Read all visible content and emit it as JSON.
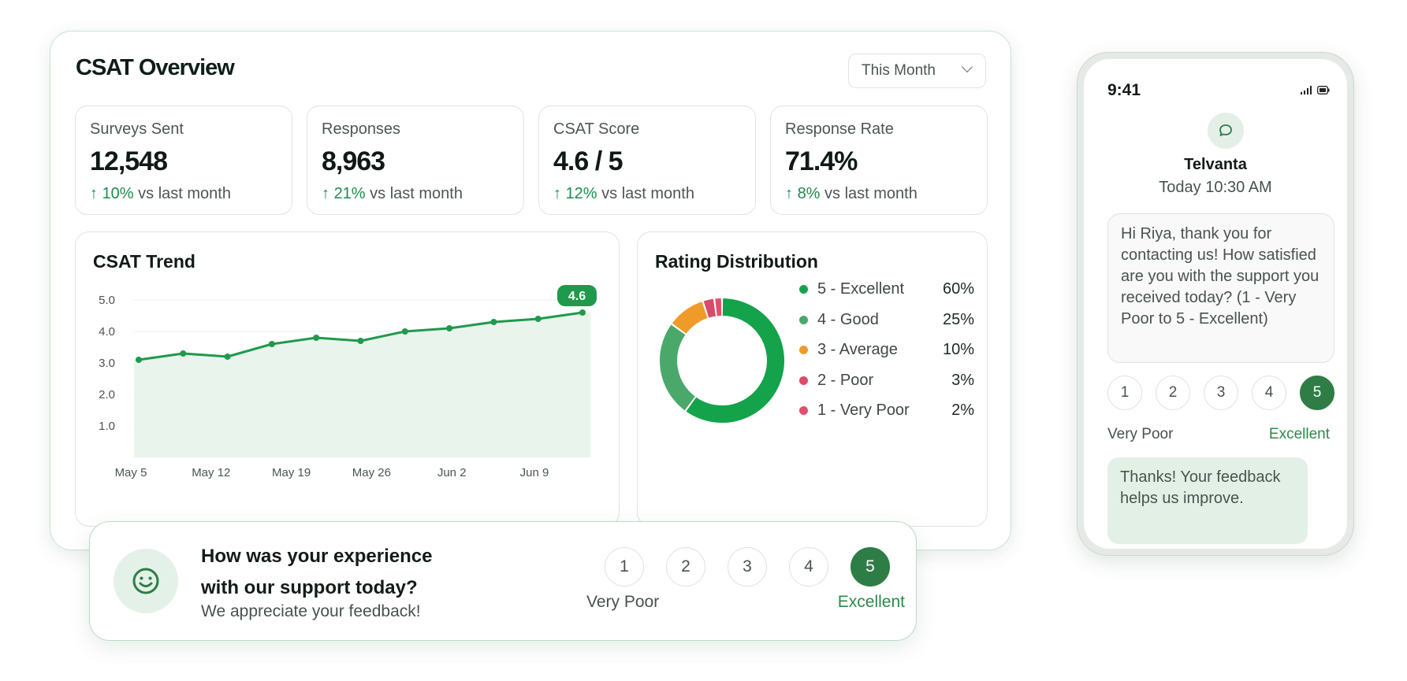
{
  "dashboard": {
    "title": "CSAT Overview",
    "period": "This Month",
    "kpis": [
      {
        "label": "Surveys Sent",
        "value": "12,548",
        "delta": "10%",
        "suffix": "vs last month"
      },
      {
        "label": "Responses",
        "value": "8,963",
        "delta": "21%",
        "suffix": "vs last month"
      },
      {
        "label": "CSAT Score",
        "value": "4.6 / 5",
        "delta": "12%",
        "suffix": "vs last month"
      },
      {
        "label": "Response Rate",
        "value": "71.4%",
        "delta": "8%",
        "suffix": "vs last month"
      }
    ],
    "trend": {
      "title": "CSAT Trend",
      "badge": "4.6"
    },
    "distribution": {
      "title": "Rating Distribution"
    }
  },
  "chart_data": [
    {
      "type": "area",
      "title": "CSAT Trend",
      "x_tick_labels": [
        "May 5",
        "May 12",
        "May 19",
        "May 26",
        "Jun 2",
        "Jun 9"
      ],
      "y_tick_labels": [
        "5.0",
        "4.0",
        "3.0",
        "2.0",
        "1.0"
      ],
      "ylim": [
        0,
        5
      ],
      "grid": true,
      "series": [
        {
          "values": [
            3.1,
            3.3,
            3.2,
            3.6,
            3.8,
            3.7,
            4.0,
            4.1,
            4.3,
            4.4,
            4.6
          ],
          "color": "#1f9a4c"
        }
      ]
    },
    {
      "type": "pie",
      "donut": true,
      "title": "Rating Distribution",
      "slices": [
        {
          "label": "5 - Excellent",
          "value": 60,
          "pct": "60%",
          "color": "#14a24a"
        },
        {
          "label": "4 - Good",
          "value": 25,
          "pct": "25%",
          "color": "#4aa86b"
        },
        {
          "label": "3 - Average",
          "value": 10,
          "pct": "10%",
          "color": "#ee9b2a"
        },
        {
          "label": "2 - Poor",
          "value": 3,
          "pct": "3%",
          "color": "#d94a6a"
        },
        {
          "label": "1 - Very Poor",
          "value": 2,
          "pct": "2%",
          "color": "#e0506c"
        }
      ],
      "legend_placement": "right"
    }
  ],
  "feedback": {
    "question": "How was your experience with our support today?",
    "subtitle": "We appreciate your feedback!",
    "ratings": [
      "1",
      "2",
      "3",
      "4",
      "5"
    ],
    "selected": "5",
    "low_label": "Very Poor",
    "high_label": "Excellent"
  },
  "phone": {
    "time": "9:41",
    "sender": "Telvanta",
    "timestamp": "Today 10:30 AM",
    "message": "Hi Riya, thank you for contacting us! How satisfied are you with the support you received today? (1 - Very Poor to 5 - Excellent)",
    "ratings": [
      "1",
      "2",
      "3",
      "4",
      "5"
    ],
    "selected": "5",
    "low_label": "Very Poor",
    "high_label": "Excellent",
    "reply": "Thanks! Your feedback helps us improve."
  },
  "colors": {
    "accent": "#2e7d46",
    "positive": "#1f8a4c",
    "line": "#1f9a4c"
  }
}
